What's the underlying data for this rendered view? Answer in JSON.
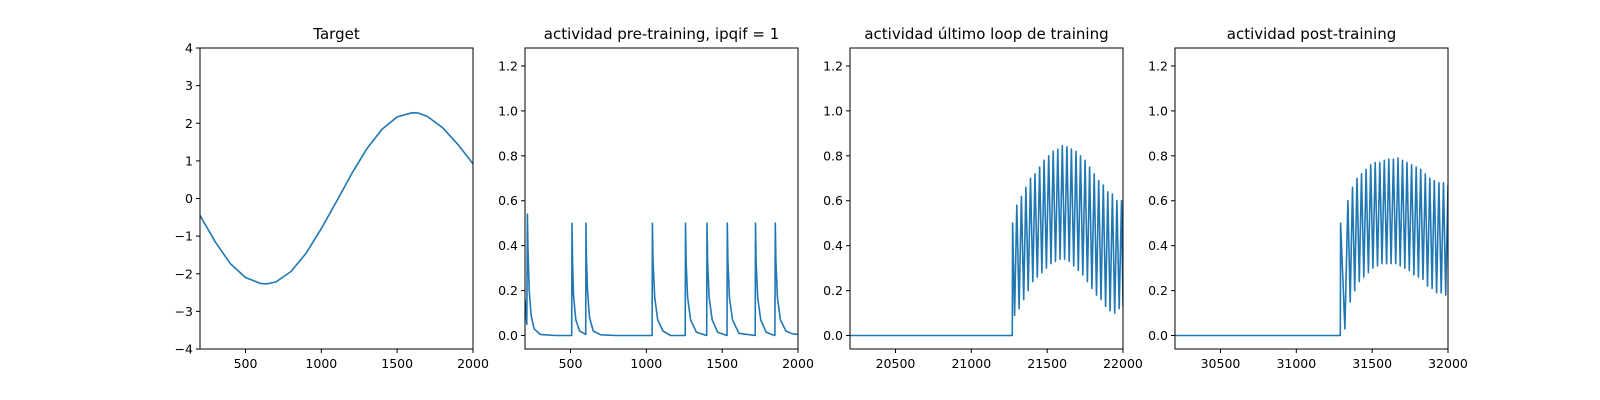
{
  "chart_data": [
    {
      "type": "line",
      "title": "Target",
      "xlabel": "",
      "ylabel": "",
      "xlim": [
        200,
        2000
      ],
      "ylim": [
        -4,
        4
      ],
      "xticks": [
        500,
        1000,
        1500,
        2000
      ],
      "yticks": [
        -4,
        -3,
        -2,
        -1,
        0,
        1,
        2,
        3,
        4
      ],
      "grid": false,
      "series": [
        {
          "color": "#1f77b4",
          "x": [
            200,
            300,
            400,
            500,
            600,
            640,
            700,
            800,
            900,
            1000,
            1100,
            1200,
            1300,
            1400,
            1500,
            1600,
            1640,
            1700,
            1800,
            1900,
            2000
          ],
          "y": [
            -0.45,
            -1.15,
            -1.73,
            -2.1,
            -2.26,
            -2.27,
            -2.22,
            -1.94,
            -1.45,
            -0.8,
            -0.08,
            0.66,
            1.32,
            1.84,
            2.17,
            2.28,
            2.27,
            2.18,
            1.88,
            1.44,
            0.92
          ]
        }
      ]
    },
    {
      "type": "line",
      "title": "actividad pre-training, ipqif = 1",
      "xlabel": "",
      "ylabel": "",
      "xlim": [
        200,
        2000
      ],
      "ylim": [
        -0.06,
        1.28
      ],
      "xticks": [
        500,
        1000,
        1500,
        2000
      ],
      "yticks": [
        0.0,
        0.2,
        0.4,
        0.6,
        0.8,
        1.0,
        1.2
      ],
      "grid": false,
      "series": [
        {
          "color": "#1f77b4",
          "x": [
            200,
            212,
            216,
            220,
            228,
            240,
            260,
            300,
            400,
            508,
            510,
            514,
            520,
            535,
            560,
            600,
            602,
            605,
            612,
            625,
            650,
            700,
            800,
            1038,
            1040,
            1044,
            1055,
            1075,
            1110,
            1160,
            1256,
            1258,
            1262,
            1272,
            1292,
            1330,
            1398,
            1400,
            1404,
            1414,
            1434,
            1470,
            1532,
            1534,
            1538,
            1548,
            1568,
            1610,
            1718,
            1720,
            1724,
            1734,
            1754,
            1790,
            1840,
            1848,
            1850,
            1854,
            1864,
            1884,
            1920,
            1960,
            2000
          ],
          "y": [
            0.16,
            0.05,
            0.54,
            0.38,
            0.2,
            0.09,
            0.03,
            0.005,
            0.0,
            0.0,
            0.5,
            0.32,
            0.18,
            0.07,
            0.02,
            0.005,
            0.5,
            0.35,
            0.2,
            0.08,
            0.02,
            0.003,
            0.0,
            0.0,
            0.5,
            0.33,
            0.17,
            0.07,
            0.02,
            0.0,
            0.0,
            0.5,
            0.33,
            0.17,
            0.07,
            0.015,
            0.0,
            0.5,
            0.33,
            0.17,
            0.07,
            0.015,
            0.0,
            0.5,
            0.33,
            0.17,
            0.07,
            0.01,
            0.0,
            0.5,
            0.33,
            0.17,
            0.07,
            0.015,
            0.002,
            0.0,
            0.5,
            0.33,
            0.17,
            0.07,
            0.02,
            0.008,
            0.005
          ]
        }
      ]
    },
    {
      "type": "line",
      "title": "actividad último loop de training",
      "xlabel": "",
      "ylabel": "",
      "xlim": [
        20200,
        22000
      ],
      "ylim": [
        -0.06,
        1.28
      ],
      "xticks": [
        20500,
        21000,
        21500,
        22000
      ],
      "yticks": [
        0.0,
        0.2,
        0.4,
        0.6,
        0.8,
        1.0,
        1.2
      ],
      "grid": false,
      "series": [
        {
          "color": "#1f77b4",
          "x": [
            20200,
            21270,
            21272,
            21285,
            21300,
            21315,
            21330,
            21345,
            21360,
            21375,
            21390,
            21405,
            21420,
            21435,
            21450,
            21465,
            21480,
            21495,
            21510,
            21525,
            21540,
            21555,
            21570,
            21585,
            21600,
            21615,
            21630,
            21645,
            21660,
            21675,
            21690,
            21705,
            21720,
            21735,
            21750,
            21765,
            21780,
            21795,
            21810,
            21825,
            21840,
            21855,
            21870,
            21885,
            21900,
            21915,
            21930,
            21945,
            21960,
            21975,
            21990,
            22000
          ],
          "y": [
            0.0,
            0.0,
            0.5,
            0.09,
            0.58,
            0.12,
            0.62,
            0.16,
            0.66,
            0.2,
            0.7,
            0.24,
            0.72,
            0.26,
            0.75,
            0.28,
            0.78,
            0.3,
            0.8,
            0.32,
            0.82,
            0.33,
            0.83,
            0.34,
            0.845,
            0.34,
            0.84,
            0.33,
            0.83,
            0.31,
            0.82,
            0.29,
            0.8,
            0.27,
            0.78,
            0.24,
            0.75,
            0.21,
            0.72,
            0.18,
            0.69,
            0.16,
            0.67,
            0.13,
            0.64,
            0.11,
            0.63,
            0.1,
            0.6,
            0.12,
            0.6,
            0.13
          ]
        }
      ]
    },
    {
      "type": "line",
      "title": "actividad post-training",
      "xlabel": "",
      "ylabel": "",
      "xlim": [
        30200,
        32000
      ],
      "ylim": [
        -0.06,
        1.28
      ],
      "xticks": [
        30500,
        31000,
        31500,
        32000
      ],
      "yticks": [
        0.0,
        0.2,
        0.4,
        0.6,
        0.8,
        1.0,
        1.2
      ],
      "grid": false,
      "series": [
        {
          "color": "#1f77b4",
          "x": [
            30200,
            31290,
            31292,
            31320,
            31340,
            31355,
            31370,
            31385,
            31400,
            31415,
            31430,
            31445,
            31460,
            31475,
            31490,
            31505,
            31520,
            31535,
            31550,
            31565,
            31580,
            31595,
            31610,
            31625,
            31640,
            31655,
            31670,
            31685,
            31700,
            31715,
            31730,
            31745,
            31760,
            31775,
            31790,
            31805,
            31820,
            31835,
            31850,
            31865,
            31880,
            31895,
            31910,
            31925,
            31940,
            31955,
            31970,
            31985,
            32000
          ],
          "y": [
            0.0,
            0.0,
            0.5,
            0.03,
            0.6,
            0.15,
            0.66,
            0.2,
            0.7,
            0.24,
            0.72,
            0.26,
            0.74,
            0.28,
            0.76,
            0.3,
            0.77,
            0.31,
            0.77,
            0.32,
            0.78,
            0.32,
            0.785,
            0.32,
            0.785,
            0.32,
            0.79,
            0.31,
            0.78,
            0.3,
            0.77,
            0.29,
            0.76,
            0.27,
            0.75,
            0.26,
            0.74,
            0.25,
            0.72,
            0.22,
            0.7,
            0.21,
            0.69,
            0.19,
            0.68,
            0.19,
            0.68,
            0.18,
            0.67
          ]
        }
      ]
    }
  ]
}
